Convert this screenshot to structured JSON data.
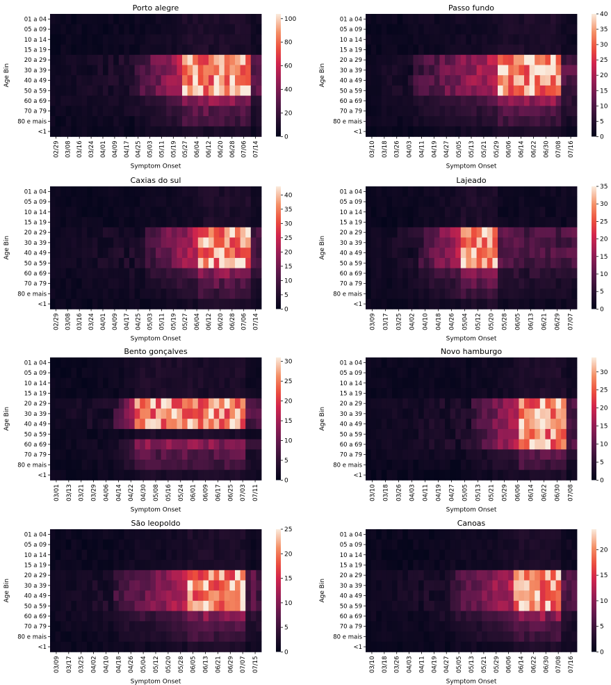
{
  "chart_data": {
    "type": "heatmap",
    "colormap": "rocket",
    "ylabel": "Age Bin",
    "xlabel": "Symptom Onset",
    "age_bins": [
      "01 a 04",
      "05 a 09",
      "10 a 14",
      "15 a 19",
      "20 a 29",
      "30 a 39",
      "40 a 49",
      "50 a 59",
      "60 a 69",
      "70 a 79",
      "80 e mais",
      "<1"
    ],
    "panels": [
      {
        "title": "Porto alegre",
        "x_ticks": [
          "02/29",
          "03/08",
          "03/16",
          "03/24",
          "04/01",
          "04/09",
          "04/17",
          "04/25",
          "05/03",
          "05/11",
          "05/19",
          "05/27",
          "06/04",
          "06/12",
          "06/20",
          "06/28",
          "07/06",
          "07/14"
        ],
        "colorbar_ticks": [
          0,
          20,
          40,
          60,
          80,
          100
        ],
        "vmax": 104,
        "peak_rows": [
          4,
          5,
          6,
          7
        ],
        "hot_range": [
          0.62,
          0.93
        ],
        "rise_start": 0.4
      },
      {
        "title": "Passo fundo",
        "x_ticks": [
          "03/10",
          "03/18",
          "03/26",
          "04/03",
          "04/11",
          "04/19",
          "04/27",
          "05/05",
          "05/13",
          "05/21",
          "05/29",
          "06/06",
          "06/14",
          "06/22",
          "06/30",
          "07/08",
          "07/16"
        ],
        "colorbar_ticks": [
          0,
          5,
          10,
          15,
          20,
          25,
          30,
          35,
          40
        ],
        "vmax": 40,
        "peak_rows": [
          4,
          5,
          6,
          7
        ],
        "hot_range": [
          0.62,
          0.9
        ],
        "rise_start": 0.22
      },
      {
        "title": "Caxias do sul",
        "x_ticks": [
          "02/29",
          "03/08",
          "03/16",
          "03/24",
          "04/01",
          "04/09",
          "04/17",
          "04/25",
          "05/03",
          "05/11",
          "05/19",
          "05/27",
          "06/04",
          "06/12",
          "06/20",
          "06/28",
          "07/06",
          "07/14"
        ],
        "colorbar_ticks": [
          0,
          5,
          10,
          15,
          20,
          25,
          30,
          35,
          40
        ],
        "vmax": 43,
        "peak_rows": [
          4,
          5,
          6,
          7
        ],
        "hot_range": [
          0.7,
          0.93
        ],
        "rise_start": 0.45
      },
      {
        "title": "Lajeado",
        "x_ticks": [
          "03/09",
          "03/17",
          "03/25",
          "04/02",
          "04/10",
          "04/18",
          "04/26",
          "05/04",
          "05/12",
          "05/20",
          "05/28",
          "06/05",
          "06/13",
          "06/21",
          "06/29",
          "07/07"
        ],
        "colorbar_ticks": [
          0,
          5,
          10,
          15,
          20,
          25,
          30,
          35
        ],
        "vmax": 35,
        "peak_rows": [
          4,
          5,
          6,
          7
        ],
        "hot_range": [
          0.44,
          0.6
        ],
        "rise_start": 0.25
      },
      {
        "title": "Bento gonçalves",
        "x_ticks": [
          "03/01",
          "03/13",
          "03/21",
          "03/29",
          "04/06",
          "04/14",
          "04/22",
          "04/30",
          "05/08",
          "05/16",
          "05/24",
          "06/01",
          "06/09",
          "06/17",
          "06/25",
          "07/03",
          "07/11"
        ],
        "colorbar_ticks": [
          0,
          5,
          10,
          15,
          20,
          25,
          30
        ],
        "vmax": 31,
        "peak_rows": [
          4,
          5,
          6
        ],
        "hot_range": [
          0.4,
          0.9
        ],
        "rise_start": 0.3
      },
      {
        "title": "Novo hamburgo",
        "x_ticks": [
          "03/10",
          "03/18",
          "03/26",
          "04/03",
          "04/11",
          "04/19",
          "04/27",
          "05/05",
          "05/13",
          "05/21",
          "05/29",
          "06/06",
          "06/14",
          "06/22",
          "06/30",
          "07/08"
        ],
        "colorbar_ticks": [
          0,
          5,
          10,
          15,
          20,
          25,
          30
        ],
        "vmax": 34,
        "peak_rows": [
          4,
          5,
          6,
          7,
          8
        ],
        "hot_range": [
          0.72,
          0.93
        ],
        "rise_start": 0.5
      },
      {
        "title": "São leopoldo",
        "x_ticks": [
          "03/09",
          "03/17",
          "03/25",
          "04/02",
          "04/10",
          "04/18",
          "04/26",
          "05/04",
          "05/12",
          "05/20",
          "05/28",
          "06/05",
          "06/13",
          "06/21",
          "06/29",
          "07/07",
          "07/15"
        ],
        "colorbar_ticks": [
          0,
          5,
          10,
          15,
          20,
          25
        ],
        "vmax": 25,
        "peak_rows": [
          4,
          5,
          6,
          7
        ],
        "hot_range": [
          0.65,
          0.9
        ],
        "rise_start": 0.3
      },
      {
        "title": "Canoas",
        "x_ticks": [
          "03/10",
          "03/18",
          "03/26",
          "04/03",
          "04/11",
          "04/19",
          "04/27",
          "05/05",
          "05/13",
          "05/21",
          "05/29",
          "06/06",
          "06/14",
          "06/22",
          "06/30",
          "07/08",
          "07/16"
        ],
        "colorbar_ticks": [
          0,
          5,
          10,
          15,
          20
        ],
        "vmax": 24,
        "peak_rows": [
          4,
          5,
          6,
          7
        ],
        "hot_range": [
          0.7,
          0.9
        ],
        "rise_start": 0.4
      }
    ]
  }
}
